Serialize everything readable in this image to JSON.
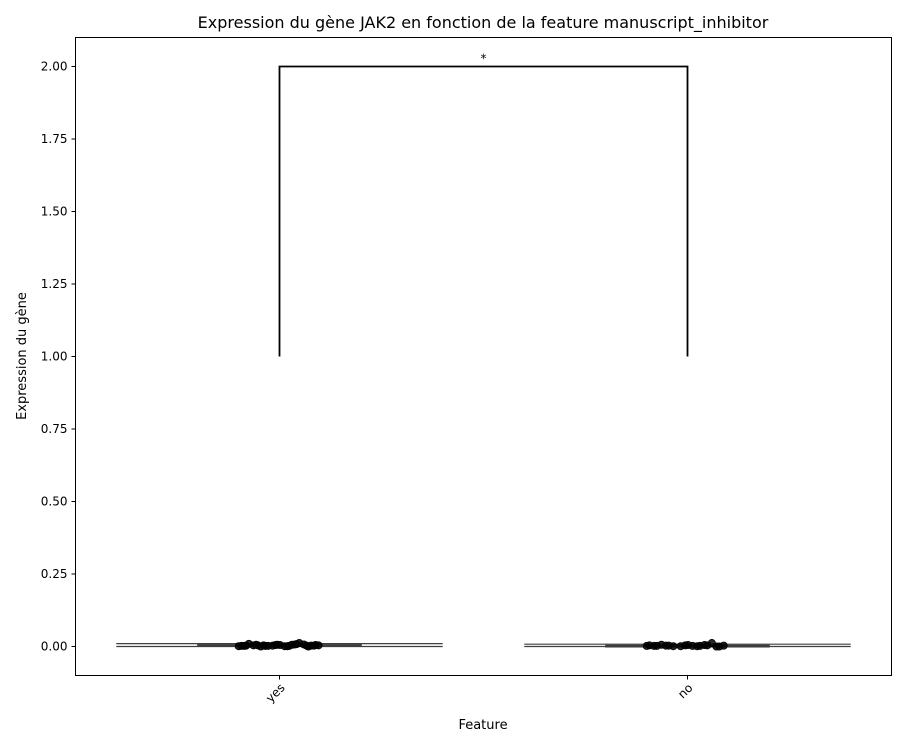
{
  "chart_data": {
    "type": "box",
    "title": "Expression du gène JAK2 en fonction de la feature manuscript_inhibitor",
    "xlabel": "Feature",
    "ylabel": "Expression du gène",
    "categories": [
      "yes",
      "no"
    ],
    "ylim": [
      -0.1,
      2.1
    ],
    "yticks": [
      0.0,
      0.25,
      0.5,
      0.75,
      1.0,
      1.25,
      1.5,
      1.75,
      2.0
    ],
    "ytick_labels": [
      "0.00",
      "0.25",
      "0.50",
      "0.75",
      "1.00",
      "1.25",
      "1.50",
      "1.75",
      "2.00"
    ],
    "boxes": [
      {
        "category": "yes",
        "whisker_low": 0.0,
        "q1": 0.001,
        "median": 0.003,
        "q3": 0.006,
        "whisker_high": 0.01
      },
      {
        "category": "no",
        "whisker_low": 0.0,
        "q1": 0.0,
        "median": 0.002,
        "q3": 0.004,
        "whisker_high": 0.008
      }
    ],
    "points": [
      {
        "category": "yes",
        "values": [
          0.001,
          0.002,
          0.004,
          0.0,
          0.006,
          0.003,
          0.008,
          0.002,
          0.005,
          0.001,
          0.004,
          0.007,
          0.003,
          0.002,
          0.006,
          0.0,
          0.003,
          0.005,
          0.009,
          0.012,
          0.002,
          0.004,
          0.001,
          0.006,
          0.003,
          0.005,
          0.002,
          0.007,
          0.004,
          0.003
        ]
      },
      {
        "category": "no",
        "values": [
          0.002,
          0.001,
          0.003,
          0.0,
          0.004,
          0.002,
          0.005,
          0.001,
          0.003,
          0.002,
          0.006,
          0.012,
          0.001,
          0.004,
          0.002,
          0.003,
          0.0,
          0.005,
          0.002,
          0.004
        ]
      }
    ],
    "significance": {
      "from": "yes",
      "to": "no",
      "y_low": 1.0,
      "y_high": 2.0,
      "label": "*"
    },
    "grid": false,
    "colors": {
      "line": "#000000",
      "box_edge": "#3f3f3f",
      "point": "#000000"
    }
  }
}
